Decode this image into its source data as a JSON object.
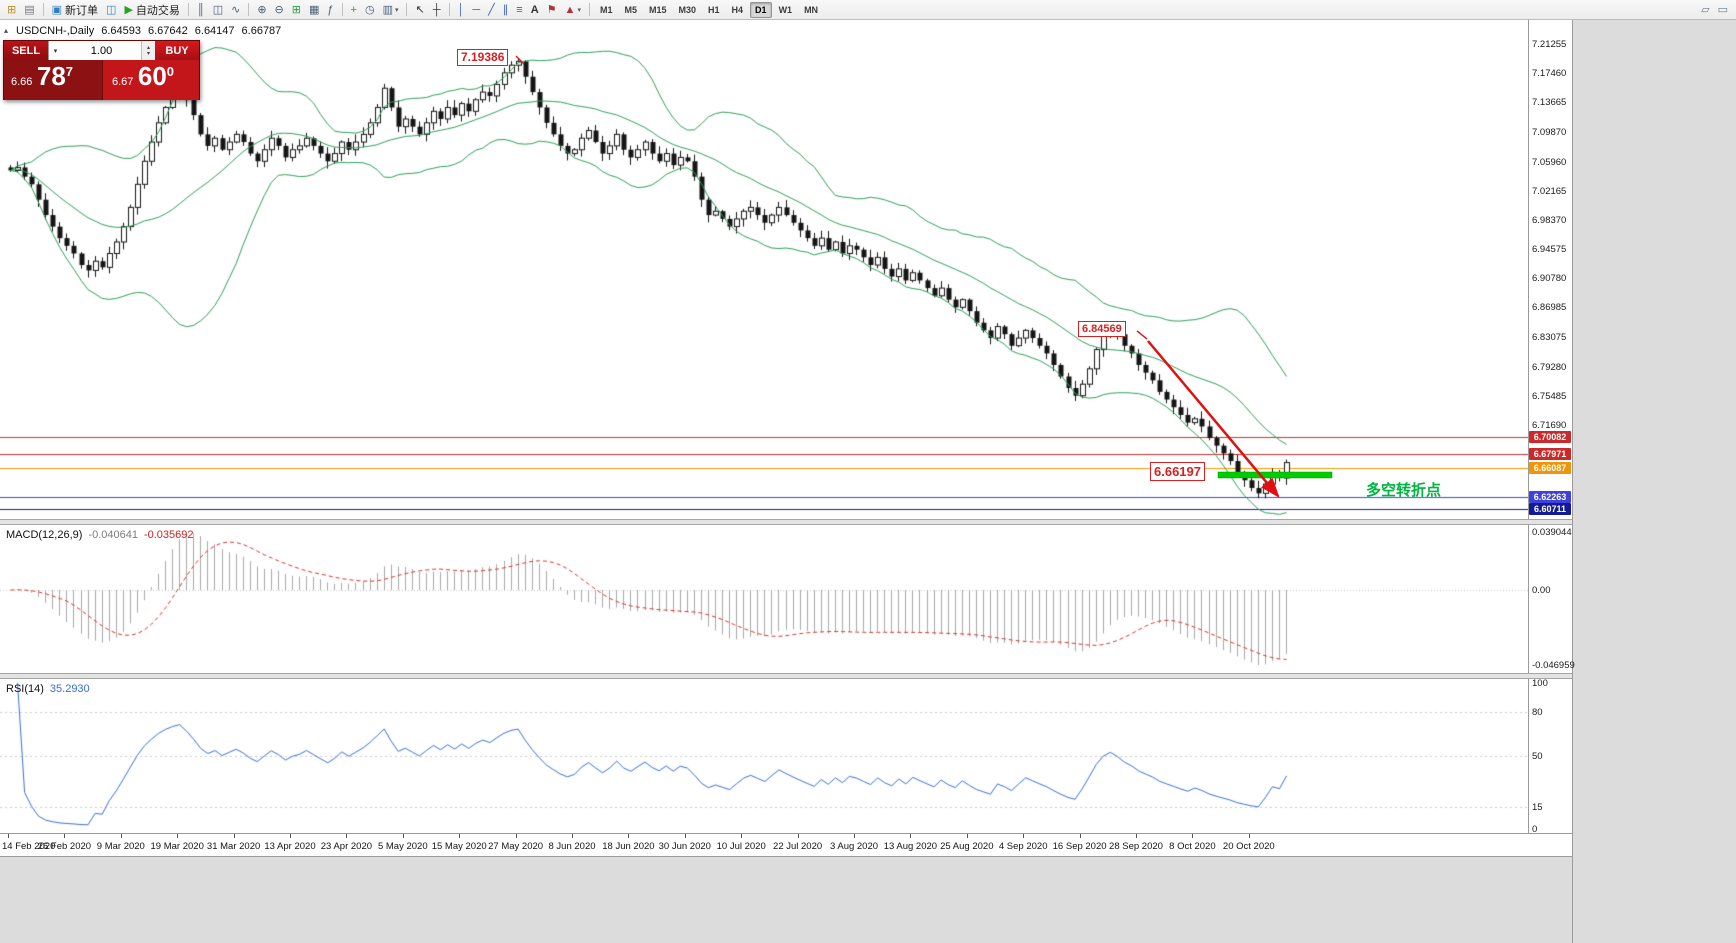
{
  "colors": {
    "accent_red": "#cc2222",
    "bull_body": "#ffffff",
    "bear_body": "#151515",
    "candle_stroke": "#151515",
    "bollinger": "#2E9E5B",
    "macd_hist": "#a8a8a8",
    "macd_signal": "#e03030",
    "rsi_line": "#3A6FD8",
    "green_level": "#00cc00",
    "arrow_red": "#e01010"
  },
  "toolbar": {
    "items": [
      {
        "name": "new-chart",
        "glyph": "⊞",
        "color": "#b8912a"
      },
      {
        "name": "profiles",
        "glyph": "▤",
        "color": "#767676"
      },
      {
        "name": "sep"
      },
      {
        "name": "new-order",
        "glyph": "▣",
        "label": "新订单",
        "color": "#2f7fbf"
      },
      {
        "name": "market-watch",
        "glyph": "◫",
        "color": "#2f7fbf"
      },
      {
        "name": "autotrading",
        "glyph": "▶",
        "label": "自动交易",
        "color": "#2aa02a"
      },
      {
        "name": "sep"
      },
      {
        "name": "bar-chart",
        "glyph": "║"
      },
      {
        "name": "candle-chart",
        "glyph": "◫"
      },
      {
        "name": "line-chart",
        "glyph": "∿"
      },
      {
        "name": "sep"
      },
      {
        "name": "zoom-in",
        "glyph": "⊕"
      },
      {
        "name": "zoom-out",
        "glyph": "⊖"
      },
      {
        "name": "tile-windows",
        "glyph": "⊞",
        "color": "#2f9e44"
      },
      {
        "name": "auto-arrange",
        "glyph": "▦"
      },
      {
        "name": "indicator-list",
        "glyph": "ƒ"
      },
      {
        "name": "sep"
      },
      {
        "name": "add-indicator",
        "glyph": "+",
        "color": "#2f9e44"
      },
      {
        "name": "periods",
        "glyph": "◷"
      },
      {
        "name": "templates",
        "glyph": "▥",
        "dropdown": true
      },
      {
        "name": "sep"
      },
      {
        "name": "cursor",
        "glyph": "↖",
        "color": "#333333"
      },
      {
        "name": "crosshair",
        "glyph": "┼",
        "color": "#333333"
      },
      {
        "name": "sep"
      },
      {
        "name": "vertical-line",
        "glyph": "│",
        "color": "#3a5fae"
      },
      {
        "name": "horizontal-line",
        "glyph": "─",
        "color": "#3a5fae"
      },
      {
        "name": "trendline",
        "glyph": "╱",
        "color": "#3a5fae"
      },
      {
        "name": "channel",
        "glyph": "∥",
        "color": "#3a5fae"
      },
      {
        "name": "fibonacci",
        "glyph": "≡",
        "color": "#3a5fae"
      },
      {
        "name": "text",
        "glyph": "A",
        "color": "#333333"
      },
      {
        "name": "text-label",
        "glyph": "⚑",
        "color": "#b23333"
      },
      {
        "name": "arrows",
        "glyph": "▲",
        "color": "#b23333",
        "dropdown": true
      },
      {
        "name": "sep"
      }
    ],
    "timeframes": [
      "M1",
      "M5",
      "M15",
      "M30",
      "H1",
      "H4",
      "D1",
      "W1",
      "MN"
    ],
    "active_timeframe": "D1",
    "right_icons": [
      {
        "name": "window-cascade",
        "glyph": "▱"
      },
      {
        "name": "window-tile",
        "glyph": "▭"
      }
    ]
  },
  "chart_header": {
    "title": "USDCNH-,Daily",
    "open": "6.64593",
    "high": "6.67642",
    "low": "6.64147",
    "close": "6.66787"
  },
  "trade_panel": {
    "sell_label": "SELL",
    "buy_label": "BUY",
    "volume": "1.00",
    "sell_price_small": "6.66",
    "sell_price_big": "78",
    "sell_price_sup": "7",
    "buy_price_small": "6.67",
    "buy_price_big": "60",
    "buy_price_sup": "0"
  },
  "annotations": {
    "peak_label": "7.19386",
    "mid_label": "6.84569",
    "support_label": "6.66197",
    "turning_point_text": "多空转折点"
  },
  "price_axis_labels": [
    "7.21255",
    "7.17460",
    "7.13665",
    "7.09870",
    "7.05960",
    "7.02165",
    "6.98370",
    "6.94575",
    "6.90780",
    "6.86985",
    "6.83075",
    "6.79280",
    "6.75485",
    "6.71690"
  ],
  "price_tags": [
    {
      "label": "6.70082",
      "bg": "#cc2a2a",
      "line": "#d03030"
    },
    {
      "label": "6.67971",
      "bg": "#cc2a2a",
      "line": "#d03030"
    },
    {
      "label": "6.66087",
      "bg": "#f0940a",
      "line": "#ff9800"
    },
    {
      "label": "6.62263",
      "bg": "#4040dd",
      "line": "#4444e0"
    },
    {
      "label": "6.60711",
      "bg": "#141a96",
      "line": "#1a1a90"
    }
  ],
  "macd": {
    "label": "MACD(12,26,9)",
    "value_main": "-0.040641",
    "value_signal": "-0.035692",
    "axis_top": "0.039044",
    "axis_zero": "0.00",
    "axis_bottom": "-0.046959"
  },
  "rsi": {
    "label": "RSI(14)",
    "value": "35.2930",
    "axis": [
      "100",
      "80",
      "50",
      "15",
      "0"
    ]
  },
  "time_axis": [
    "14 Feb 2020",
    "26 Feb 2020",
    "9 Mar 2020",
    "19 Mar 2020",
    "31 Mar 2020",
    "13 Apr 2020",
    "23 Apr 2020",
    "5 May 2020",
    "15 May 2020",
    "27 May 2020",
    "8 Jun 2020",
    "18 Jun 2020",
    "30 Jun 2020",
    "10 Jul 2020",
    "22 Jul 2020",
    "3 Aug 2020",
    "13 Aug 2020",
    "25 Aug 2020",
    "4 Sep 2020",
    "16 Sep 2020",
    "28 Sep 2020",
    "8 Oct 2020",
    "20 Oct 2020"
  ],
  "chart_data": {
    "type": "candlestick",
    "symbol": "USDCNH-",
    "timeframe": "Daily",
    "bollinger_period": 20,
    "bollinger_dev": 2,
    "macd_params": [
      12,
      26,
      9
    ],
    "rsi_period": 14,
    "closes": [
      7.048,
      7.052,
      7.04,
      7.03,
      7.01,
      6.99,
      6.975,
      6.96,
      6.95,
      6.94,
      6.925,
      6.918,
      6.93,
      6.922,
      6.94,
      6.955,
      6.975,
      7.0,
      7.03,
      7.06,
      7.085,
      7.11,
      7.13,
      7.145,
      7.155,
      7.14,
      7.12,
      7.095,
      7.08,
      7.09,
      7.075,
      7.085,
      7.095,
      7.085,
      7.07,
      7.06,
      7.075,
      7.09,
      7.08,
      7.065,
      7.075,
      7.08,
      7.09,
      7.08,
      7.07,
      7.06,
      7.07,
      7.085,
      7.075,
      7.085,
      7.095,
      7.11,
      7.13,
      7.155,
      7.13,
      7.105,
      7.115,
      7.105,
      7.095,
      7.11,
      7.125,
      7.115,
      7.13,
      7.12,
      7.135,
      7.125,
      7.14,
      7.15,
      7.145,
      7.16,
      7.175,
      7.185,
      7.19,
      7.17,
      7.15,
      7.13,
      7.11,
      7.095,
      7.08,
      7.07,
      7.075,
      7.09,
      7.1,
      7.085,
      7.07,
      7.08,
      7.095,
      7.075,
      7.065,
      7.075,
      7.085,
      7.07,
      7.06,
      7.07,
      7.055,
      7.065,
      7.06,
      7.04,
      7.01,
      6.99,
      6.995,
      6.985,
      6.975,
      6.985,
      6.995,
      7.0,
      6.99,
      6.98,
      6.99,
      7.0,
      6.99,
      6.98,
      6.97,
      6.96,
      6.95,
      6.96,
      6.945,
      6.955,
      6.94,
      6.95,
      6.945,
      6.935,
      6.925,
      6.935,
      6.92,
      6.91,
      6.92,
      6.905,
      6.915,
      6.905,
      6.895,
      6.885,
      6.895,
      6.88,
      6.87,
      6.88,
      6.865,
      6.85,
      6.84,
      6.83,
      6.845,
      6.835,
      6.82,
      6.83,
      6.84,
      6.83,
      6.82,
      6.81,
      6.795,
      6.78,
      6.765,
      6.755,
      6.77,
      6.79,
      6.815,
      6.835,
      6.845,
      6.835,
      6.82,
      6.81,
      6.795,
      6.785,
      6.775,
      6.76,
      6.75,
      6.74,
      6.73,
      6.72,
      6.725,
      6.715,
      6.7,
      6.69,
      6.68,
      6.67,
      6.655,
      6.645,
      6.635,
      6.628,
      6.64,
      6.655,
      6.648,
      6.668
    ]
  }
}
